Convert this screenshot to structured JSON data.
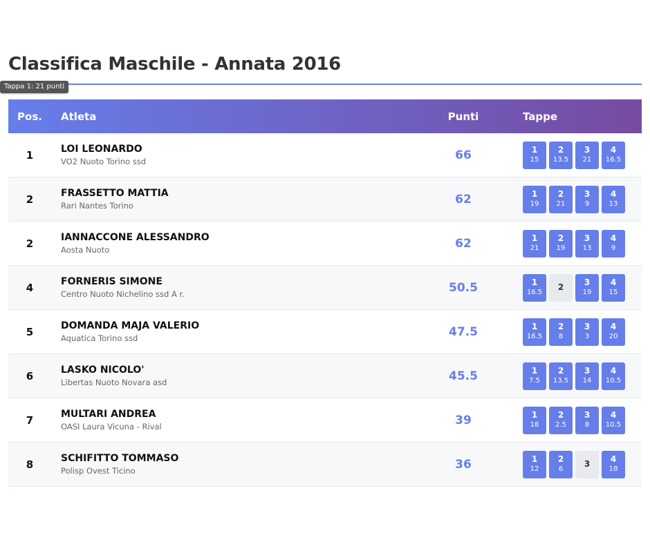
{
  "page": {
    "title": "Classifica Maschile - Annata 2016",
    "tooltip": "Tappa 1: 21 punti"
  },
  "colors": {
    "accent": "#667eea",
    "gradient_end": "#764ba2",
    "missing_stage": "#e8eaee"
  },
  "table": {
    "headers": {
      "pos": "Pos.",
      "athlete": "Atleta",
      "points": "Punti",
      "stages": "Tappe"
    },
    "rows": [
      {
        "pos": "1",
        "name": "LOI LEONARDO",
        "club": "VO2 Nuoto Torino ssd",
        "points": "66",
        "stages": [
          {
            "n": "1",
            "p": "15"
          },
          {
            "n": "2",
            "p": "13.5"
          },
          {
            "n": "3",
            "p": "21"
          },
          {
            "n": "4",
            "p": "16.5"
          }
        ]
      },
      {
        "pos": "2",
        "name": "FRASSETTO MATTIA",
        "club": "Rari Nantes Torino",
        "points": "62",
        "stages": [
          {
            "n": "1",
            "p": "19"
          },
          {
            "n": "2",
            "p": "21"
          },
          {
            "n": "3",
            "p": "9"
          },
          {
            "n": "4",
            "p": "13"
          }
        ]
      },
      {
        "pos": "2",
        "name": "IANNACCONE ALESSANDRO",
        "club": "Aosta Nuoto",
        "points": "62",
        "stages": [
          {
            "n": "1",
            "p": "21"
          },
          {
            "n": "2",
            "p": "19"
          },
          {
            "n": "3",
            "p": "13"
          },
          {
            "n": "4",
            "p": "9"
          }
        ]
      },
      {
        "pos": "4",
        "name": "FORNERIS SIMONE",
        "club": "Centro Nuoto Nichelino ssd A r.",
        "points": "50.5",
        "stages": [
          {
            "n": "1",
            "p": "16.5"
          },
          {
            "n": "2",
            "p": ""
          },
          {
            "n": "3",
            "p": "19"
          },
          {
            "n": "4",
            "p": "15"
          }
        ]
      },
      {
        "pos": "5",
        "name": "DOMANDA MAJA VALERIO",
        "club": "Aquatica Torino ssd",
        "points": "47.5",
        "stages": [
          {
            "n": "1",
            "p": "16.5"
          },
          {
            "n": "2",
            "p": "8"
          },
          {
            "n": "3",
            "p": "3"
          },
          {
            "n": "4",
            "p": "20"
          }
        ]
      },
      {
        "pos": "6",
        "name": "LASKO NICOLO'",
        "club": "Libertas Nuoto Novara asd",
        "points": "45.5",
        "stages": [
          {
            "n": "1",
            "p": "7.5"
          },
          {
            "n": "2",
            "p": "13.5"
          },
          {
            "n": "3",
            "p": "14"
          },
          {
            "n": "4",
            "p": "10.5"
          }
        ]
      },
      {
        "pos": "7",
        "name": "MULTARI ANDREA",
        "club": "OASI Laura Vicuna - Rival",
        "points": "39",
        "stages": [
          {
            "n": "1",
            "p": "18"
          },
          {
            "n": "2",
            "p": "2.5"
          },
          {
            "n": "3",
            "p": "8"
          },
          {
            "n": "4",
            "p": "10.5"
          }
        ]
      },
      {
        "pos": "8",
        "name": "SCHIFITTO TOMMASO",
        "club": "Polisp Ovest Ticino",
        "points": "36",
        "stages": [
          {
            "n": "1",
            "p": "12"
          },
          {
            "n": "2",
            "p": "6"
          },
          {
            "n": "3",
            "p": ""
          },
          {
            "n": "4",
            "p": "18"
          }
        ]
      }
    ]
  }
}
